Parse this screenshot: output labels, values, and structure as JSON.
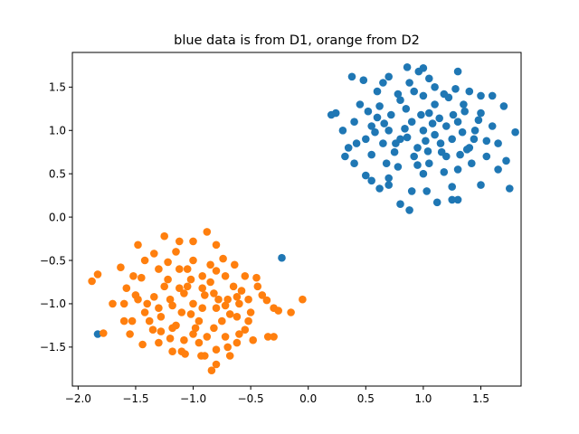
{
  "chart_data": {
    "type": "scatter",
    "title": "blue data is from D1, orange from D2",
    "xlabel": "",
    "ylabel": "",
    "xlim": [
      -2.05,
      1.85
    ],
    "ylim": [
      -1.95,
      1.9
    ],
    "xticks": [
      -2.0,
      -1.5,
      -1.0,
      -0.5,
      0.0,
      0.5,
      1.0,
      1.5
    ],
    "xtick_labels": [
      "−2.0",
      "−1.5",
      "−1.0",
      "−0.5",
      "0.0",
      "0.5",
      "1.0",
      "1.5"
    ],
    "yticks": [
      -1.5,
      -1.0,
      -0.5,
      0.0,
      0.5,
      1.0,
      1.5
    ],
    "ytick_labels": [
      "−1.5",
      "−1.0",
      "−0.5",
      "0.0",
      "0.5",
      "1.0",
      "1.5"
    ],
    "grid": false,
    "legend": "none",
    "series": [
      {
        "color": "#1f77b4",
        "points": [
          [
            1.0,
            1.0
          ],
          [
            0.9,
            1.1
          ],
          [
            1.1,
            0.95
          ],
          [
            1.2,
            1.05
          ],
          [
            0.8,
            0.9
          ],
          [
            1.05,
            1.2
          ],
          [
            0.95,
            0.8
          ],
          [
            1.3,
            1.1
          ],
          [
            0.7,
            1.0
          ],
          [
            1.15,
            0.85
          ],
          [
            0.85,
            1.25
          ],
          [
            1.25,
            0.9
          ],
          [
            0.75,
            0.75
          ],
          [
            1.35,
            1.3
          ],
          [
            0.6,
            1.15
          ],
          [
            1.4,
            0.8
          ],
          [
            1.0,
            1.4
          ],
          [
            0.95,
            0.6
          ],
          [
            1.1,
            1.3
          ],
          [
            0.65,
            0.85
          ],
          [
            1.45,
            1.0
          ],
          [
            0.55,
            1.05
          ],
          [
            1.2,
            0.7
          ],
          [
            0.8,
            1.35
          ],
          [
            1.5,
            1.2
          ],
          [
            0.5,
            0.9
          ],
          [
            1.0,
            0.5
          ],
          [
            0.88,
            1.55
          ],
          [
            1.3,
            0.55
          ],
          [
            0.4,
            1.1
          ],
          [
            1.6,
            1.05
          ],
          [
            0.35,
            0.8
          ],
          [
            1.55,
            0.7
          ],
          [
            0.45,
            1.3
          ],
          [
            1.1,
            1.5
          ],
          [
            0.7,
            0.45
          ],
          [
            1.25,
            0.35
          ],
          [
            0.3,
            1.0
          ],
          [
            1.65,
            0.85
          ],
          [
            0.6,
            1.45
          ],
          [
            1.4,
            1.45
          ],
          [
            0.9,
            0.3
          ],
          [
            0.2,
            1.18
          ],
          [
            0.24,
            1.2
          ],
          [
            0.38,
            1.62
          ],
          [
            0.48,
            1.58
          ],
          [
            0.65,
            1.55
          ],
          [
            0.86,
            1.73
          ],
          [
            0.96,
            1.68
          ],
          [
            1.0,
            1.72
          ],
          [
            1.3,
            1.68
          ],
          [
            1.5,
            1.4
          ],
          [
            1.6,
            1.4
          ],
          [
            1.7,
            1.28
          ],
          [
            1.8,
            0.98
          ],
          [
            1.75,
            0.33
          ],
          [
            1.72,
            0.65
          ],
          [
            1.65,
            0.55
          ],
          [
            1.5,
            0.37
          ],
          [
            1.3,
            0.2
          ],
          [
            1.25,
            0.2
          ],
          [
            1.12,
            0.17
          ],
          [
            1.03,
            0.3
          ],
          [
            0.88,
            0.08
          ],
          [
            0.8,
            0.15
          ],
          [
            0.7,
            0.37
          ],
          [
            0.62,
            0.33
          ],
          [
            0.55,
            0.42
          ],
          [
            0.5,
            0.48
          ],
          [
            0.4,
            0.62
          ],
          [
            0.32,
            0.7
          ],
          [
            0.42,
            0.85
          ],
          [
            0.55,
            0.72
          ],
          [
            0.68,
            0.62
          ],
          [
            0.78,
            0.58
          ],
          [
            0.92,
            0.7
          ],
          [
            1.05,
            0.62
          ],
          [
            1.18,
            0.52
          ],
          [
            1.32,
            0.72
          ],
          [
            1.42,
            0.62
          ],
          [
            1.55,
            0.88
          ],
          [
            1.48,
            1.12
          ],
          [
            1.36,
            1.22
          ],
          [
            1.22,
            1.38
          ],
          [
            1.08,
            1.08
          ],
          [
            0.98,
            1.18
          ],
          [
            0.84,
            1.02
          ],
          [
            0.72,
            1.18
          ],
          [
            0.62,
            1.28
          ],
          [
            0.52,
            1.22
          ],
          [
            0.58,
            0.98
          ],
          [
            0.66,
            1.08
          ],
          [
            0.76,
            0.85
          ],
          [
            0.86,
            0.92
          ],
          [
            1.02,
            0.88
          ],
          [
            1.14,
            1.14
          ],
          [
            1.26,
            1.18
          ],
          [
            1.34,
            0.98
          ],
          [
            1.44,
            0.9
          ],
          [
            1.38,
            0.78
          ],
          [
            1.16,
            0.75
          ],
          [
            1.04,
            0.76
          ],
          [
            0.92,
            1.45
          ],
          [
            0.78,
            1.42
          ],
          [
            1.18,
            1.42
          ],
          [
            1.28,
            1.48
          ],
          [
            0.7,
            1.62
          ],
          [
            1.05,
            1.6
          ],
          [
            -0.23,
            -0.47
          ],
          [
            -1.83,
            -1.35
          ]
        ]
      },
      {
        "color": "#ff7f0e",
        "points": [
          [
            -1.0,
            -1.0
          ],
          [
            -0.9,
            -0.9
          ],
          [
            -1.1,
            -1.1
          ],
          [
            -0.8,
            -1.05
          ],
          [
            -1.2,
            -0.95
          ],
          [
            -1.05,
            -0.8
          ],
          [
            -0.95,
            -1.2
          ],
          [
            -0.85,
            -0.75
          ],
          [
            -1.15,
            -1.25
          ],
          [
            -0.7,
            -0.95
          ],
          [
            -1.3,
            -1.05
          ],
          [
            -1.0,
            -1.35
          ],
          [
            -0.75,
            -1.2
          ],
          [
            -1.25,
            -0.8
          ],
          [
            -0.6,
            -1.0
          ],
          [
            -1.4,
            -1.0
          ],
          [
            -1.05,
            -0.6
          ],
          [
            -0.95,
            -1.45
          ],
          [
            -0.65,
            -0.8
          ],
          [
            -1.35,
            -1.3
          ],
          [
            -0.5,
            -1.1
          ],
          [
            -1.5,
            -0.9
          ],
          [
            -1.1,
            -1.55
          ],
          [
            -0.85,
            -0.55
          ],
          [
            -0.4,
            -0.9
          ],
          [
            -1.6,
            -1.2
          ],
          [
            -0.7,
            -1.5
          ],
          [
            -1.3,
            -0.6
          ],
          [
            -1.2,
            -1.4
          ],
          [
            -0.55,
            -1.3
          ],
          [
            -1.45,
            -0.7
          ],
          [
            -0.9,
            -1.6
          ],
          [
            -0.45,
            -0.7
          ],
          [
            -1.55,
            -1.35
          ],
          [
            -1.0,
            -0.5
          ],
          [
            -0.3,
            -1.05
          ],
          [
            -1.7,
            -1.0
          ],
          [
            -0.8,
            -1.7
          ],
          [
            -1.15,
            -0.4
          ],
          [
            -0.35,
            -1.38
          ],
          [
            -1.88,
            -0.74
          ],
          [
            -1.83,
            -0.66
          ],
          [
            -1.78,
            -1.34
          ],
          [
            -1.63,
            -0.58
          ],
          [
            -1.48,
            -0.32
          ],
          [
            -1.25,
            -0.22
          ],
          [
            -1.12,
            -0.28
          ],
          [
            -1.0,
            -0.28
          ],
          [
            -0.88,
            -0.17
          ],
          [
            -0.8,
            -0.32
          ],
          [
            -0.74,
            -0.48
          ],
          [
            -0.64,
            -0.55
          ],
          [
            -0.55,
            -0.68
          ],
          [
            -0.44,
            -0.8
          ],
          [
            -0.36,
            -0.96
          ],
          [
            -0.26,
            -1.08
          ],
          [
            -0.05,
            -0.95
          ],
          [
            -0.15,
            -1.1
          ],
          [
            -0.3,
            -1.38
          ],
          [
            -0.48,
            -1.42
          ],
          [
            -0.6,
            -1.35
          ],
          [
            -0.68,
            -1.6
          ],
          [
            -0.8,
            -1.53
          ],
          [
            -0.84,
            -1.77
          ],
          [
            -0.93,
            -1.6
          ],
          [
            -1.07,
            -1.58
          ],
          [
            -1.18,
            -1.55
          ],
          [
            -1.3,
            -1.45
          ],
          [
            -1.44,
            -1.47
          ],
          [
            -1.53,
            -1.2
          ],
          [
            -1.6,
            -1.0
          ],
          [
            -1.58,
            -0.82
          ],
          [
            -1.52,
            -0.68
          ],
          [
            -1.42,
            -0.5
          ],
          [
            -1.34,
            -0.42
          ],
          [
            -1.22,
            -0.52
          ],
          [
            -1.12,
            -0.6
          ],
          [
            -1.02,
            -0.72
          ],
          [
            -0.92,
            -0.82
          ],
          [
            -0.82,
            -0.88
          ],
          [
            -0.72,
            -1.02
          ],
          [
            -0.62,
            -1.15
          ],
          [
            -0.52,
            -1.2
          ],
          [
            -0.62,
            -0.92
          ],
          [
            -0.72,
            -0.68
          ],
          [
            -0.8,
            -0.62
          ],
          [
            -0.92,
            -0.68
          ],
          [
            -1.08,
            -0.88
          ],
          [
            -1.18,
            -1.02
          ],
          [
            -1.28,
            -1.15
          ],
          [
            -1.38,
            -1.2
          ],
          [
            -1.34,
            -0.92
          ],
          [
            -1.22,
            -0.72
          ],
          [
            -1.12,
            -0.82
          ],
          [
            -1.02,
            -1.12
          ],
          [
            -0.92,
            -1.05
          ],
          [
            -0.82,
            -1.28
          ],
          [
            -0.72,
            -1.38
          ],
          [
            -0.62,
            -1.45
          ],
          [
            -1.08,
            -1.42
          ],
          [
            -1.18,
            -1.28
          ],
          [
            -1.28,
            -1.32
          ],
          [
            -0.98,
            -1.28
          ],
          [
            -0.88,
            -1.38
          ],
          [
            -0.78,
            -0.95
          ],
          [
            -0.68,
            -1.12
          ],
          [
            -0.58,
            -0.85
          ],
          [
            -1.42,
            -1.1
          ],
          [
            -1.48,
            -0.95
          ],
          [
            -0.52,
            -0.95
          ]
        ]
      }
    ]
  }
}
